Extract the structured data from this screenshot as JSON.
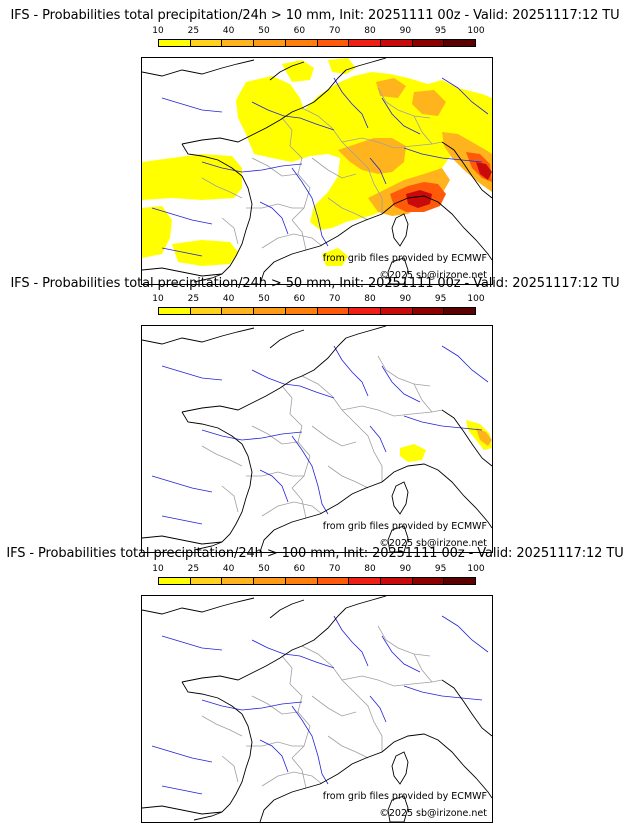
{
  "panels": [
    {
      "title": "IFS - Probabilities total precipitation/24h > 10 mm, Init: 20251111 00z - Valid: 20251117:12 TU",
      "threshold_mm": 10,
      "credit_source": "from grib files provided by ECMWF",
      "credit_copyright": "©2025 sb@irizone.net"
    },
    {
      "title": "IFS - Probabilities total precipitation/24h > 50 mm, Init: 20251111 00z - Valid: 20251117:12 TU",
      "threshold_mm": 50,
      "credit_source": "from grib files provided by ECMWF",
      "credit_copyright": "©2025 sb@irizone.net"
    },
    {
      "title": "IFS - Probabilities total precipitation/24h > 100 mm, Init: 20251111 00z - Valid: 20251117:12 TU",
      "threshold_mm": 100,
      "credit_source": "from grib files provided by ECMWF",
      "credit_copyright": "©2025 sb@irizone.net"
    }
  ],
  "colorbar": {
    "labels": [
      "10",
      "25",
      "40",
      "50",
      "60",
      "70",
      "80",
      "90",
      "95",
      "100"
    ],
    "colors": [
      "#ffff00",
      "#ffd21e",
      "#ffb41e",
      "#ff9a14",
      "#ff7f0a",
      "#ff5a0a",
      "#f01e14",
      "#c80a0a",
      "#8c0000",
      "#5a0000"
    ]
  },
  "colors": {
    "coast": "#000000",
    "borders": "#a0a0a0",
    "rivers": "#2323d8",
    "low": "#ffff00",
    "mid": "#ffb41e",
    "high": "#ff5a0a",
    "extreme": "#c80a0a"
  }
}
